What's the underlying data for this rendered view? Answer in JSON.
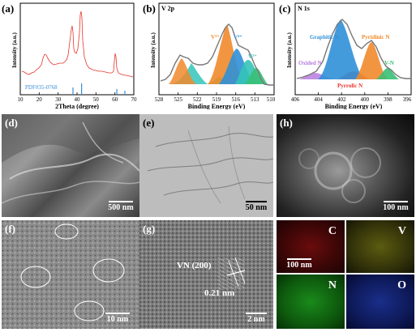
{
  "figure": {
    "panel_labels": {
      "a": "(a)",
      "b": "(b)",
      "c": "(c)",
      "d": "(d)",
      "e": "(e)",
      "f": "(f)",
      "g": "(g)",
      "h": "(h)"
    }
  },
  "xrd": {
    "ylabel": "Intensity (a.u.)",
    "xlabel": "2Theta (degree)",
    "x_ticks": [
      "10",
      "20",
      "30",
      "40",
      "50",
      "60",
      "70"
    ],
    "reference_label": "PDF#35-0768",
    "colors": {
      "curve": "#e8342b",
      "reference": "#3a8fd8"
    }
  },
  "v2p": {
    "title": "V 2p",
    "ylabel": "Intensity (a.u.)",
    "xlabel": "Binding Energy (eV)",
    "x_ticks": [
      "528",
      "525",
      "522",
      "519",
      "516",
      "513",
      "510"
    ],
    "peaks": [
      "V³⁺",
      "V⁴⁺",
      "V³⁺"
    ],
    "colors": {
      "orange": "#f08a2c",
      "blue": "#2f90d8",
      "teal": "#34c4b8",
      "green": "#38c075"
    }
  },
  "n1s": {
    "title": "N 1s",
    "ylabel": "Intensity (a.u.)",
    "xlabel": "Binding Energy (eV)",
    "x_ticks": [
      "406",
      "404",
      "402",
      "400",
      "398",
      "396"
    ],
    "peaks": [
      "Graphitic N",
      "Pyridinic N",
      "Oxided N",
      "Pyrrolic N",
      "V-N"
    ],
    "colors": {
      "graphitic": "#2f90d8",
      "pyridinic": "#f08a2c",
      "oxided": "#b77be0",
      "pyrrolic": "#e8342b",
      "vn": "#38c075"
    }
  },
  "images": {
    "d_scale": "500 nm",
    "e_scale": "50 nm",
    "h_scale": "100 nm",
    "f_scale": "10 nm",
    "g_scale": "2 nm",
    "g_plane": "VN (200)",
    "g_spacing": "0.21 nm",
    "map_scale": "100 nm"
  },
  "maps": {
    "elements": [
      "C",
      "V",
      "N",
      "O"
    ],
    "colors": {
      "C": "#c81818",
      "V": "#c8c81a",
      "N": "#1ea61e",
      "O": "#1e3ec8"
    }
  }
}
